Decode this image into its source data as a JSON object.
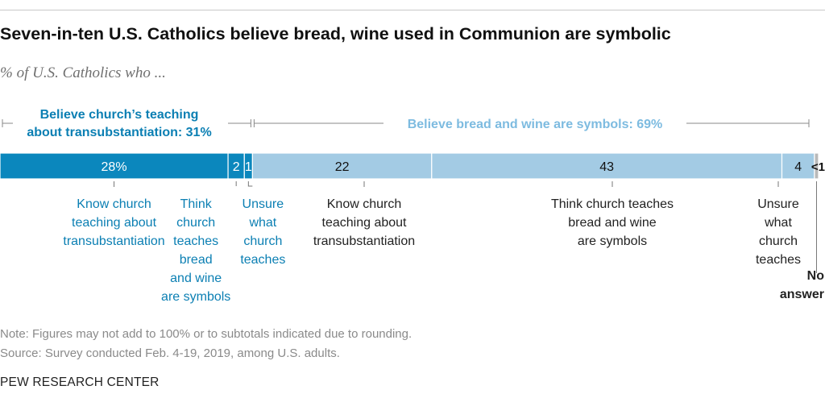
{
  "header": {
    "title": "Seven-in-ten U.S. Catholics believe bread, wine used in Communion are symbolic",
    "subtitle": "% of U.S. Catholics who ..."
  },
  "footer": {
    "note": "Note: Figures may not add to 100% or to subtotals indicated due to rounding.",
    "source": "Source: Survey conducted Feb. 4-19, 2019, among U.S. adults.",
    "credit": "PEW RESEARCH CENTER"
  },
  "colors": {
    "dark_blue": "#0b87bd",
    "light_blue": "#a3cbe4",
    "gray": "#b9b9b9",
    "dark_label": "#0b7fb3",
    "light_label": "#7dbbe0",
    "text": "#222222"
  },
  "chart_data": {
    "type": "bar",
    "orientation": "horizontal-stacked",
    "groups": [
      {
        "label_lines": [
          "Believe church’s teaching",
          "about transubstantiation: 31%"
        ],
        "value": 31,
        "color": "dark_label"
      },
      {
        "label_lines": [
          "Believe bread and wine are symbols: 69%"
        ],
        "value": 69,
        "color": "light_label"
      }
    ],
    "segments": [
      {
        "value": 28,
        "value_label": "28%",
        "color": "dark_blue",
        "label_lines": [
          "Know church",
          "teaching about",
          "transubstantiation"
        ]
      },
      {
        "value": 2,
        "value_label": "2",
        "color": "dark_blue",
        "label_lines": [
          "Think",
          "church",
          "teaches",
          "bread",
          "and wine",
          "are symbols"
        ]
      },
      {
        "value": 1,
        "value_label": "1",
        "color": "dark_blue",
        "label_lines": [
          "Unsure",
          "what",
          "church",
          "teaches"
        ]
      },
      {
        "value": 22,
        "value_label": "22",
        "color": "light_blue",
        "label_lines": [
          "Know church",
          "teaching about",
          "transubstantiation"
        ]
      },
      {
        "value": 43,
        "value_label": "43",
        "color": "light_blue",
        "label_lines": [
          "Think church teaches",
          "bread and wine",
          "are symbols"
        ]
      },
      {
        "value": 4,
        "value_label": "4",
        "color": "light_blue",
        "label_lines": [
          "Unsure",
          "what",
          "church",
          "teaches"
        ]
      },
      {
        "value": 0.5,
        "value_label": "<1",
        "color": "gray",
        "label_lines": [
          "No",
          "answer"
        ]
      }
    ]
  }
}
